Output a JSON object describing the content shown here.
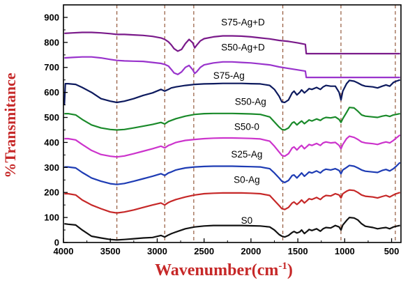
{
  "chart_data": {
    "type": "line",
    "xlabel": "Wavenumber(cm",
    "xlabel_sup": "-1",
    "xlabel_close": ")",
    "ylabel": "%Transmitance",
    "xlim": [
      4000,
      400
    ],
    "ylim": [
      0,
      950
    ],
    "x_reversed": true,
    "x_ticks": [
      4000,
      3500,
      3000,
      2500,
      2000,
      1500,
      1000,
      500
    ],
    "y_ticks": [
      0,
      100,
      200,
      300,
      400,
      500,
      600,
      700,
      800,
      900
    ],
    "grid": false,
    "reference_lines_x": [
      3430,
      2920,
      2610,
      1660,
      1040,
      460
    ],
    "series": [
      {
        "name": "S0",
        "color": "#111111",
        "x": [
          3990,
          3950,
          3870,
          3800,
          3700,
          3600,
          3500,
          3430,
          3350,
          3250,
          3150,
          3050,
          2960,
          2920,
          2880,
          2850,
          2800,
          2700,
          2600,
          2500,
          2400,
          2300,
          2200,
          2100,
          2000,
          1900,
          1800,
          1750,
          1700,
          1670,
          1640,
          1600,
          1560,
          1540,
          1510,
          1480,
          1460,
          1430,
          1400,
          1380,
          1350,
          1300,
          1260,
          1230,
          1200,
          1150,
          1100,
          1060,
          1040,
          1020,
          980,
          950,
          900,
          860,
          820,
          780,
          700,
          650,
          600,
          560,
          520,
          480,
          450,
          410
        ],
        "y": [
          75,
          73,
          70,
          50,
          25,
          18,
          12,
          10,
          12,
          15,
          18,
          20,
          28,
          22,
          30,
          35,
          42,
          55,
          62,
          66,
          68,
          68,
          68,
          68,
          67,
          66,
          62,
          50,
          32,
          25,
          22,
          28,
          40,
          44,
          38,
          42,
          50,
          36,
          45,
          52,
          48,
          55,
          45,
          55,
          60,
          58,
          68,
          62,
          50,
          70,
          88,
          100,
          98,
          90,
          75,
          65,
          60,
          55,
          58,
          60,
          55,
          62,
          65,
          68
        ]
      },
      {
        "name": "S0-Ag",
        "color": "#c62828",
        "x": [
          3990,
          3950,
          3870,
          3800,
          3700,
          3600,
          3500,
          3430,
          3350,
          3250,
          3150,
          3050,
          2960,
          2920,
          2880,
          2850,
          2800,
          2700,
          2600,
          2500,
          2400,
          2300,
          2200,
          2100,
          2000,
          1900,
          1800,
          1750,
          1700,
          1670,
          1640,
          1600,
          1560,
          1540,
          1510,
          1480,
          1460,
          1430,
          1400,
          1380,
          1350,
          1300,
          1260,
          1230,
          1200,
          1150,
          1100,
          1060,
          1040,
          1020,
          980,
          950,
          900,
          860,
          820,
          780,
          700,
          650,
          600,
          560,
          520,
          480,
          450,
          410
        ],
        "y": [
          195,
          195,
          190,
          170,
          150,
          135,
          122,
          118,
          122,
          130,
          140,
          150,
          158,
          150,
          160,
          165,
          172,
          182,
          190,
          195,
          197,
          198,
          198,
          198,
          197,
          195,
          188,
          168,
          148,
          135,
          132,
          140,
          158,
          162,
          152,
          162,
          170,
          158,
          168,
          175,
          172,
          180,
          172,
          182,
          188,
          186,
          195,
          190,
          178,
          195,
          205,
          210,
          208,
          200,
          190,
          185,
          182,
          178,
          184,
          188,
          182,
          190,
          195,
          200
        ]
      },
      {
        "name": "S25-Ag",
        "color": "#1e3cb4",
        "x": [
          3990,
          3950,
          3870,
          3800,
          3700,
          3600,
          3500,
          3430,
          3350,
          3250,
          3150,
          3050,
          2960,
          2920,
          2880,
          2850,
          2800,
          2700,
          2600,
          2500,
          2400,
          2300,
          2200,
          2100,
          2000,
          1900,
          1800,
          1750,
          1700,
          1670,
          1640,
          1600,
          1560,
          1540,
          1510,
          1480,
          1460,
          1430,
          1400,
          1380,
          1350,
          1300,
          1260,
          1230,
          1200,
          1150,
          1100,
          1060,
          1040,
          1020,
          980,
          950,
          900,
          860,
          820,
          780,
          700,
          650,
          600,
          560,
          520,
          480,
          450,
          410
        ],
        "y": [
          302,
          302,
          298,
          280,
          258,
          245,
          235,
          232,
          236,
          245,
          255,
          265,
          275,
          268,
          278,
          282,
          290,
          298,
          302,
          304,
          305,
          305,
          305,
          304,
          303,
          302,
          295,
          278,
          258,
          245,
          240,
          248,
          268,
          270,
          258,
          270,
          278,
          265,
          275,
          282,
          278,
          286,
          278,
          288,
          293,
          290,
          295,
          288,
          275,
          290,
          300,
          308,
          305,
          298,
          290,
          285,
          282,
          280,
          288,
          292,
          286,
          295,
          305,
          320
        ]
      },
      {
        "name": "S50-0",
        "color": "#cc33cc",
        "x": [
          3990,
          3950,
          3870,
          3800,
          3700,
          3600,
          3500,
          3430,
          3350,
          3250,
          3150,
          3050,
          2960,
          2920,
          2880,
          2850,
          2800,
          2700,
          2600,
          2500,
          2400,
          2300,
          2200,
          2100,
          2000,
          1900,
          1800,
          1750,
          1700,
          1670,
          1640,
          1600,
          1560,
          1540,
          1510,
          1480,
          1460,
          1430,
          1400,
          1380,
          1350,
          1300,
          1260,
          1230,
          1200,
          1150,
          1100,
          1060,
          1040,
          1020,
          980,
          950,
          900,
          860,
          820,
          780,
          700,
          650,
          600,
          560,
          520,
          480,
          450,
          410
        ],
        "y": [
          415,
          415,
          410,
          392,
          368,
          352,
          345,
          342,
          346,
          355,
          365,
          375,
          385,
          378,
          388,
          392,
          400,
          408,
          412,
          415,
          417,
          418,
          418,
          417,
          416,
          414,
          405,
          385,
          362,
          348,
          345,
          355,
          378,
          382,
          370,
          382,
          388,
          375,
          385,
          392,
          388,
          396,
          388,
          398,
          402,
          398,
          400,
          388,
          375,
          392,
          415,
          425,
          420,
          412,
          402,
          398,
          395,
          392,
          398,
          402,
          398,
          408,
          418,
          430
        ]
      },
      {
        "name": "S50-Ag",
        "color": "#1a8a2a",
        "x": [
          3990,
          3950,
          3870,
          3800,
          3700,
          3600,
          3500,
          3430,
          3350,
          3250,
          3150,
          3050,
          2960,
          2920,
          2880,
          2850,
          2800,
          2700,
          2600,
          2500,
          2400,
          2300,
          2200,
          2100,
          2000,
          1900,
          1800,
          1750,
          1700,
          1670,
          1640,
          1600,
          1560,
          1540,
          1510,
          1480,
          1460,
          1430,
          1400,
          1380,
          1350,
          1300,
          1260,
          1230,
          1200,
          1150,
          1100,
          1060,
          1040,
          1020,
          980,
          950,
          900,
          860,
          820,
          780,
          700,
          650,
          600,
          560,
          520,
          480,
          450,
          410
        ],
        "y": [
          515,
          515,
          510,
          492,
          470,
          458,
          452,
          450,
          452,
          458,
          465,
          472,
          480,
          474,
          484,
          488,
          495,
          505,
          512,
          515,
          516,
          516,
          516,
          515,
          514,
          512,
          502,
          482,
          462,
          452,
          450,
          458,
          478,
          482,
          470,
          480,
          486,
          475,
          484,
          490,
          486,
          494,
          488,
          496,
          500,
          498,
          502,
          492,
          480,
          495,
          520,
          540,
          538,
          525,
          510,
          505,
          502,
          500,
          505,
          508,
          504,
          510,
          512,
          515
        ]
      },
      {
        "name": "S75-Ag",
        "color": "#0d1a5e",
        "x": [
          3990,
          3980,
          3950,
          3870,
          3800,
          3700,
          3600,
          3500,
          3430,
          3350,
          3250,
          3150,
          3050,
          2960,
          2920,
          2880,
          2850,
          2800,
          2700,
          2600,
          2500,
          2400,
          2300,
          2200,
          2100,
          2000,
          1900,
          1800,
          1750,
          1700,
          1670,
          1640,
          1600,
          1560,
          1540,
          1510,
          1480,
          1460,
          1430,
          1400,
          1380,
          1350,
          1300,
          1260,
          1230,
          1200,
          1150,
          1100,
          1060,
          1040,
          1020,
          980,
          950,
          900,
          860,
          820,
          780,
          700,
          650,
          600,
          560,
          520,
          480,
          450,
          410
        ],
        "y": [
          550,
          635,
          635,
          632,
          620,
          600,
          575,
          565,
          560,
          565,
          575,
          588,
          598,
          612,
          605,
          612,
          618,
          622,
          628,
          632,
          634,
          635,
          636,
          636,
          636,
          635,
          634,
          628,
          612,
          585,
          562,
          560,
          570,
          598,
          605,
          590,
          600,
          610,
          598,
          608,
          615,
          612,
          620,
          612,
          622,
          628,
          625,
          625,
          600,
          570,
          605,
          635,
          648,
          645,
          638,
          630,
          625,
          622,
          618,
          625,
          630,
          625,
          640,
          645,
          650
        ]
      },
      {
        "name": "S50-Ag+D",
        "color": "#9933cc",
        "x": [
          3990,
          3900,
          3800,
          3700,
          3600,
          3500,
          3430,
          3350,
          3250,
          3150,
          3050,
          2960,
          2920,
          2880,
          2850,
          2820,
          2780,
          2740,
          2700,
          2660,
          2620,
          2600,
          2580,
          2540,
          2500,
          2400,
          2300,
          2200,
          2100,
          2000,
          1900,
          1800,
          1700,
          1600,
          1500,
          1420,
          1410,
          1380,
          1300,
          1200,
          1100,
          1000,
          900,
          800,
          700,
          600,
          500,
          410
        ],
        "y": [
          738,
          740,
          742,
          742,
          738,
          732,
          728,
          726,
          725,
          724,
          720,
          716,
          712,
          705,
          692,
          678,
          672,
          682,
          700,
          708,
          690,
          676,
          682,
          700,
          710,
          718,
          722,
          722,
          720,
          718,
          714,
          710,
          702,
          696,
          690,
          685,
          660,
          660,
          660,
          660,
          660,
          660,
          660,
          660,
          660,
          660,
          660,
          660
        ]
      },
      {
        "name": "S75-Ag+D",
        "color": "#7a1a8a",
        "x": [
          3990,
          3900,
          3800,
          3700,
          3600,
          3500,
          3430,
          3350,
          3250,
          3150,
          3050,
          2960,
          2920,
          2880,
          2850,
          2820,
          2780,
          2740,
          2700,
          2660,
          2620,
          2600,
          2580,
          2540,
          2500,
          2400,
          2300,
          2200,
          2100,
          2000,
          1900,
          1800,
          1700,
          1600,
          1500,
          1420,
          1410,
          1380,
          1300,
          1200,
          1100,
          1000,
          900,
          800,
          700,
          600,
          500,
          410
        ],
        "y": [
          836,
          838,
          840,
          840,
          838,
          835,
          832,
          832,
          830,
          828,
          824,
          818,
          812,
          802,
          790,
          775,
          765,
          772,
          795,
          812,
          798,
          778,
          788,
          806,
          815,
          822,
          826,
          826,
          825,
          822,
          818,
          814,
          808,
          804,
          798,
          792,
          755,
          755,
          755,
          755,
          755,
          755,
          755,
          755,
          755,
          755,
          755,
          755
        ]
      }
    ],
    "labels": [
      {
        "text": "S75-Ag+D",
        "x": 2085,
        "y": 868,
        "series": "S75-Ag+D"
      },
      {
        "text": "S50-Ag+D",
        "x": 2085,
        "y": 768,
        "series": "S50-Ag+D"
      },
      {
        "text": "S75-Ag",
        "x": 2235,
        "y": 655,
        "series": "S75-Ag"
      },
      {
        "text": "S50-Ag",
        "x": 2005,
        "y": 550,
        "series": "S50-Ag"
      },
      {
        "text": "S50-0",
        "x": 2045,
        "y": 450,
        "series": "S50-0"
      },
      {
        "text": "S25-Ag",
        "x": 2045,
        "y": 340,
        "series": "S25-Ag"
      },
      {
        "text": "S0-Ag",
        "x": 2045,
        "y": 238,
        "series": "S0-Ag"
      },
      {
        "text": "S0",
        "x": 2045,
        "y": 75,
        "series": "S0"
      }
    ]
  }
}
